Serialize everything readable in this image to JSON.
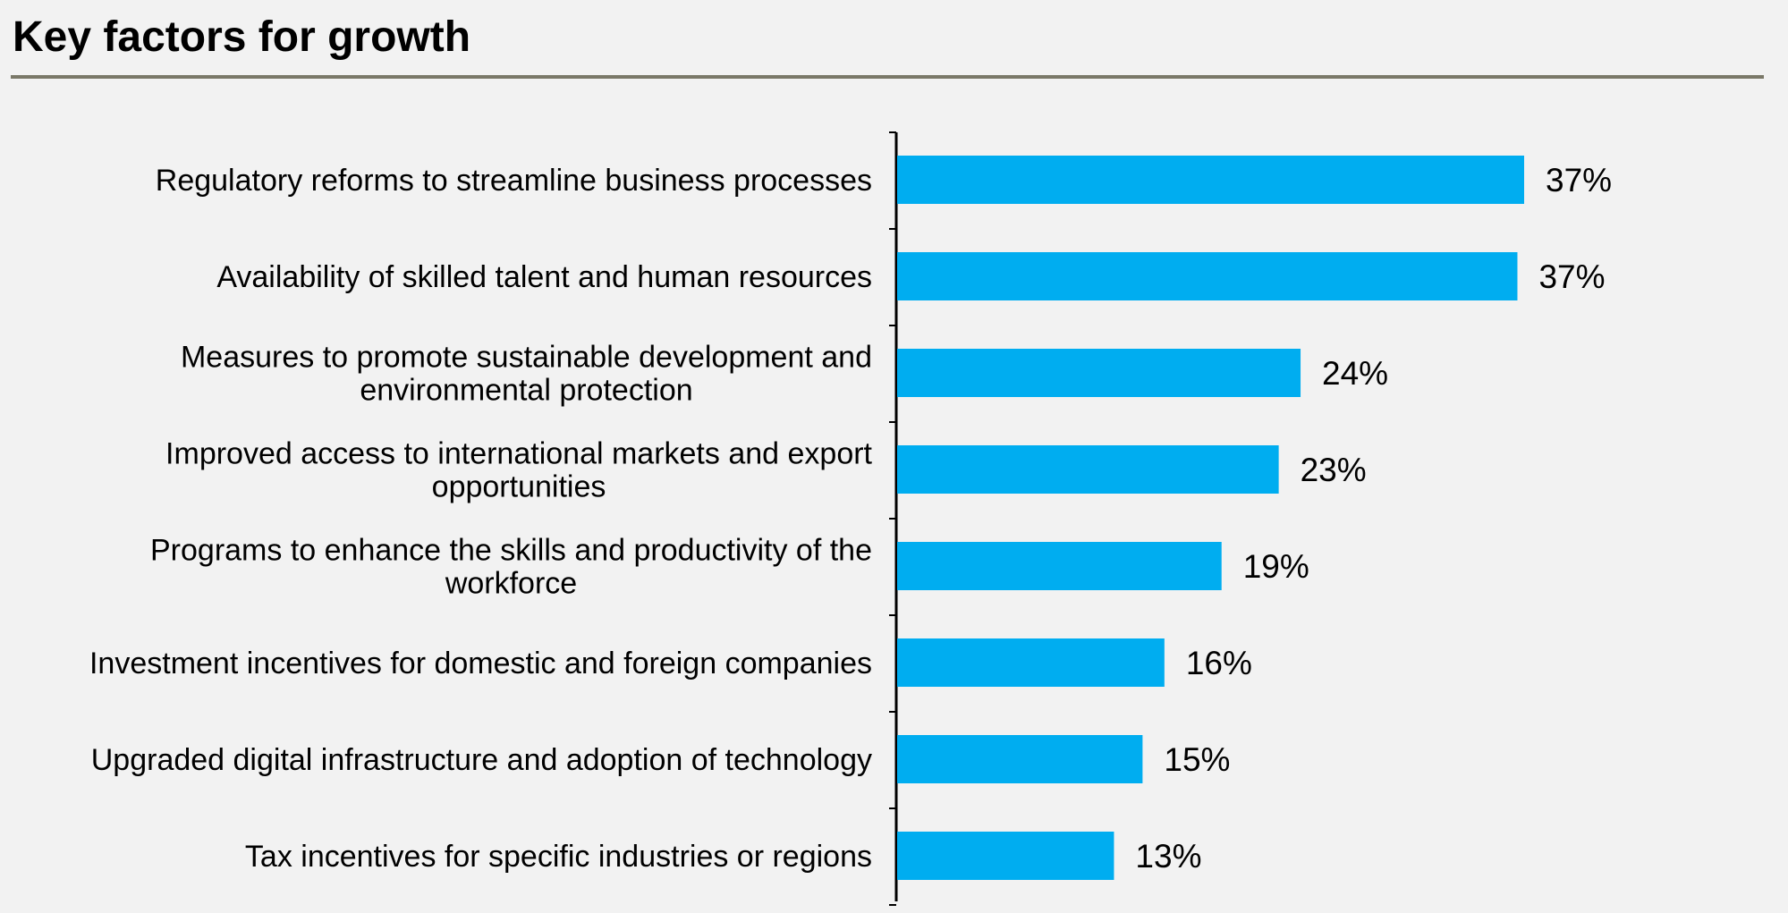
{
  "page": {
    "title": "Key factors for growth"
  },
  "colors": {
    "background": "#f2f2f2",
    "bar": "#00adf0",
    "rule": "#7a7868",
    "axis": "#000000"
  },
  "chart_data": {
    "type": "bar",
    "orientation": "horizontal",
    "categories": [
      [
        "Regulatory reforms to streamline business processes"
      ],
      [
        "Availability of skilled talent and human resources"
      ],
      [
        "Measures to promote sustainable development and",
        "environmental protection"
      ],
      [
        "Improved access to international markets and export",
        "opportunities"
      ],
      [
        "Programs to enhance the skills and productivity of the",
        "workforce"
      ],
      [
        "Investment incentives for domestic and foreign companies"
      ],
      [
        "Upgraded digital infrastructure and adoption of technology"
      ],
      [
        "Tax incentives for specific industries or regions"
      ]
    ],
    "values": [
      37.3,
      36.9,
      24,
      22.7,
      19.3,
      15.9,
      14.6,
      12.9
    ],
    "data_labels": [
      "37%",
      "37%",
      "24%",
      "23%",
      "19%",
      "16%",
      "15%",
      "13%"
    ],
    "value_unit": "%",
    "xlim": [
      0,
      50
    ],
    "title": "",
    "xlabel": "",
    "ylabel": "",
    "grid": false,
    "legend": "none"
  }
}
